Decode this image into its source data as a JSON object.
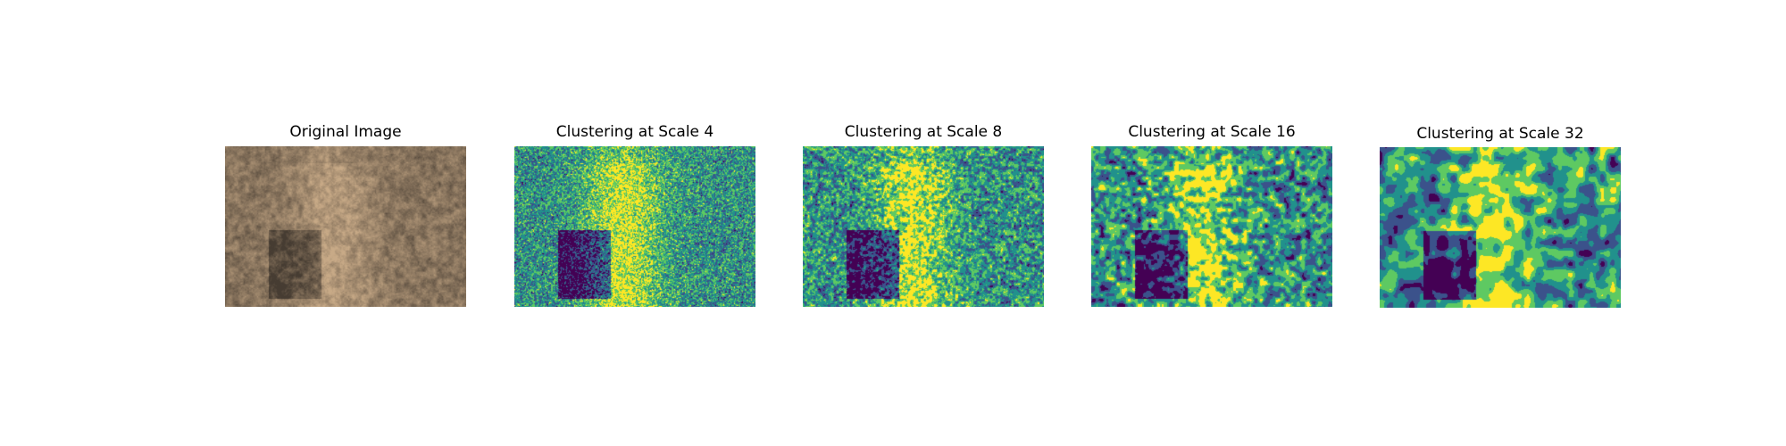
{
  "figure": {
    "panels": [
      {
        "title": "Original Image",
        "kind": "photo",
        "seed": 11
      },
      {
        "title": "Clustering at Scale 4",
        "kind": "cluster",
        "scale": 4,
        "seed": 23
      },
      {
        "title": "Clustering at Scale 8",
        "kind": "cluster",
        "scale": 8,
        "seed": 37
      },
      {
        "title": "Clustering at Scale 16",
        "kind": "cluster",
        "scale": 16,
        "seed": 41
      },
      {
        "title": "Clustering at Scale 32",
        "kind": "cluster",
        "scale": 32,
        "seed": 59
      }
    ],
    "cluster_colors": [
      "#440154",
      "#3b528b",
      "#21918c",
      "#5ec962",
      "#fde725"
    ]
  }
}
